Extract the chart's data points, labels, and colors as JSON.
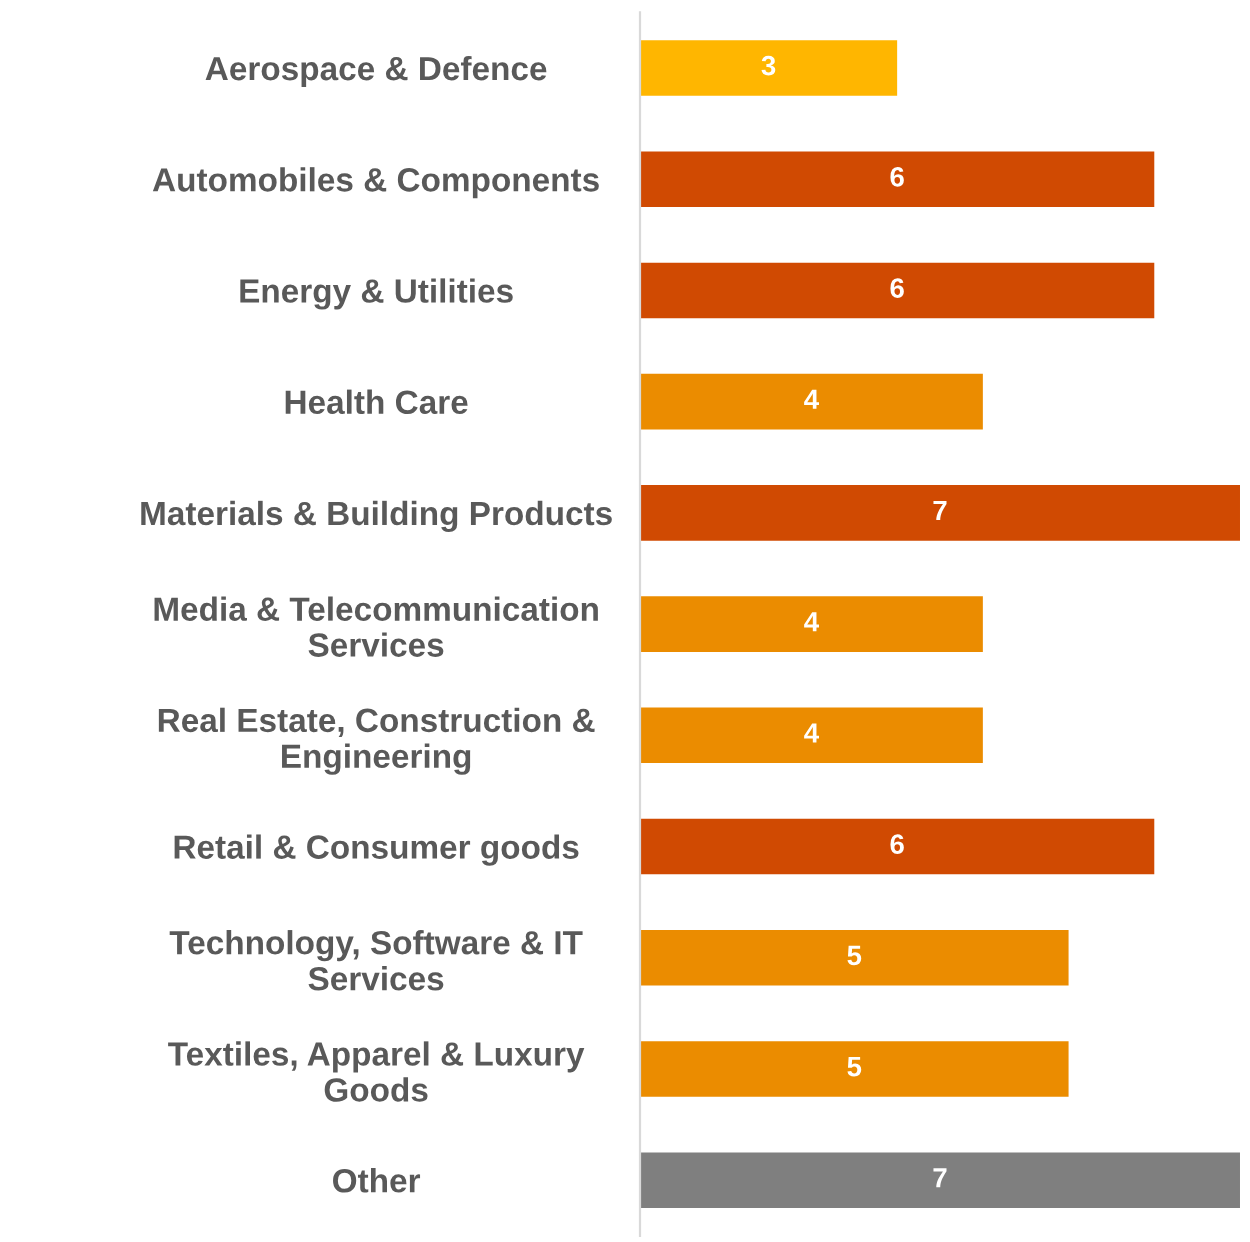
{
  "chart_data": {
    "type": "bar",
    "orientation": "horizontal",
    "categories": [
      "Aerospace & Defence",
      "Automobiles & Components",
      "Energy & Utilities",
      "Health Care",
      "Materials & Building Products",
      "Media & Telecommunication\nServices",
      "Real Estate, Construction &\nEngineering",
      "Retail & Consumer goods",
      "Technology, Software & IT\nServices",
      "Textiles, Apparel & Luxury\nGoods",
      "Other"
    ],
    "values": [
      3,
      6,
      6,
      4,
      7,
      4,
      4,
      6,
      5,
      5,
      7
    ],
    "colors": [
      "#ffb600",
      "#d04a02",
      "#d04a02",
      "#eb8c00",
      "#d04a02",
      "#eb8c00",
      "#eb8c00",
      "#d04a02",
      "#eb8c00",
      "#eb8c00",
      "#7f7f7f"
    ],
    "data_labels": true,
    "grid": false,
    "legend": false,
    "tick_labels": "y"
  }
}
